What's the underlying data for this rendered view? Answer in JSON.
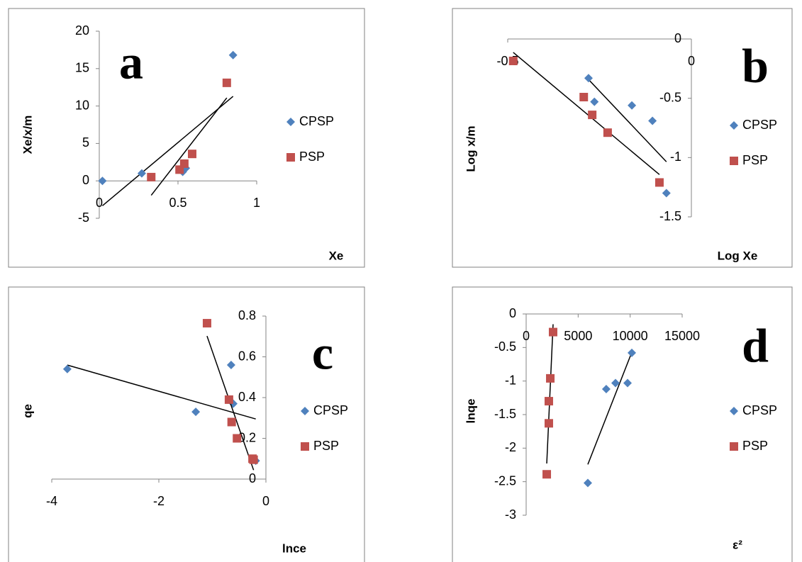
{
  "chart_data": [
    {
      "type": "scatter",
      "panel_label": "a",
      "x_label": "Xe",
      "y_label": "Xe/x/m",
      "xlim": [
        0,
        1
      ],
      "xticks": [
        0,
        0.5,
        1
      ],
      "ylim": [
        -5,
        20
      ],
      "yticks": [
        -5,
        0,
        5,
        10,
        15,
        20
      ],
      "trendline": "linear",
      "legend": "right",
      "grid": false,
      "series": [
        {
          "name": "CPSP",
          "color": "#4f81bd",
          "marker": "diamond",
          "x": [
            0.02,
            0.27,
            0.53,
            0.55,
            0.85
          ],
          "values": [
            0,
            1,
            1.2,
            1.7,
            16.8
          ]
        },
        {
          "name": "PSP",
          "color": "#c0504d",
          "marker": "square",
          "x": [
            0.33,
            0.51,
            0.54,
            0.59,
            0.81
          ],
          "values": [
            0.5,
            1.5,
            2.3,
            3.6,
            13.1
          ]
        }
      ]
    },
    {
      "type": "scatter",
      "panel_label": "b",
      "x_label": "Log Xe",
      "y_label": "Log x/m",
      "xlim": [
        -0.5,
        0
      ],
      "xticks": [
        -0.5,
        0
      ],
      "ylim": [
        -1.5,
        0
      ],
      "yticks": [
        -1.5,
        -1,
        -0.5,
        0
      ],
      "trendline": "linear",
      "legend": "right",
      "grid": false,
      "series": [
        {
          "name": "CPSP",
          "color": "#4f81bd",
          "marker": "diamond",
          "x": [
            -0.28,
            -0.264,
            -0.162,
            -0.106,
            -0.068
          ],
          "values": [
            -0.33,
            -0.53,
            -0.56,
            -0.69,
            -1.3
          ]
        },
        {
          "name": "PSP",
          "color": "#c0504d",
          "marker": "square",
          "x": [
            -0.485,
            -0.293,
            -0.27,
            -0.228,
            -0.087
          ],
          "values": [
            -0.185,
            -0.49,
            -0.64,
            -0.79,
            -1.21
          ]
        }
      ]
    },
    {
      "type": "scatter",
      "panel_label": "c",
      "x_label": "lnce",
      "y_label": "qe",
      "xlim": [
        -4,
        0
      ],
      "xticks": [
        -4,
        -2,
        0
      ],
      "ylim": [
        0,
        0.8
      ],
      "yticks": [
        0,
        0.2,
        0.4,
        0.6,
        0.8
      ],
      "trendline": "linear",
      "legend": "right",
      "grid": false,
      "series": [
        {
          "name": "CPSP",
          "color": "#4f81bd",
          "marker": "diamond",
          "x": [
            -3.71,
            -1.31,
            -0.65,
            -0.61,
            -0.19
          ],
          "values": [
            0.54,
            0.33,
            0.56,
            0.37,
            0.09
          ]
        },
        {
          "name": "PSP",
          "color": "#c0504d",
          "marker": "square",
          "x": [
            -1.1,
            -0.69,
            -0.64,
            -0.54,
            -0.25,
            -0.23
          ],
          "values": [
            0.765,
            0.39,
            0.28,
            0.2,
            0.1,
            0.095
          ]
        }
      ]
    },
    {
      "type": "scatter",
      "panel_label": "d",
      "x_label": "ε²",
      "y_label": "lnqe",
      "xlim": [
        0,
        15000
      ],
      "xticks": [
        0,
        5000,
        10000,
        15000
      ],
      "ylim": [
        -3,
        0
      ],
      "yticks": [
        -3,
        -2.5,
        -2,
        -1.5,
        -1,
        -0.5,
        0
      ],
      "trendline": "linear",
      "legend": "right",
      "grid": false,
      "series": [
        {
          "name": "CPSP",
          "color": "#4f81bd",
          "marker": "diamond",
          "x": [
            5930,
            7700,
            8590,
            9750,
            10160
          ],
          "values": [
            -2.52,
            -1.12,
            -1.03,
            -1.03,
            -0.58
          ]
        },
        {
          "name": "PSP",
          "color": "#c0504d",
          "marker": "square",
          "x": [
            2590,
            2320,
            2180,
            2180,
            1980
          ],
          "values": [
            -0.27,
            -0.96,
            -1.3,
            -1.63,
            -2.39
          ]
        }
      ]
    }
  ]
}
